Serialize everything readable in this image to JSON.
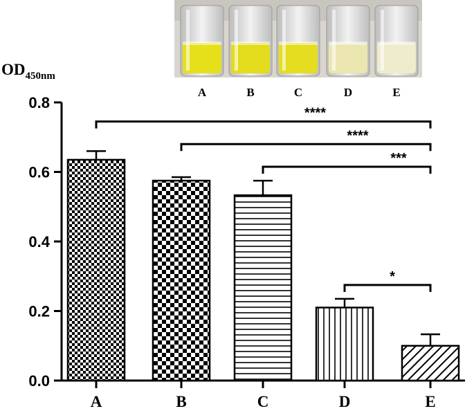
{
  "chart_data": {
    "type": "bar",
    "ylabel": "OD",
    "ylabel_subscript": "450nm",
    "xlabel": "",
    "ylim": [
      0,
      0.8
    ],
    "yticks": [
      "0.0",
      "0.2",
      "0.4",
      "0.6",
      "0.8"
    ],
    "categories": [
      "A",
      "B",
      "C",
      "D",
      "E"
    ],
    "values": [
      0.635,
      0.575,
      0.533,
      0.21,
      0.1
    ],
    "errors": [
      0.025,
      0.01,
      0.042,
      0.025,
      0.033
    ],
    "patterns": [
      "fine-checker",
      "coarse-checker",
      "horizontal-lines",
      "vertical-lines",
      "diagonal-lines"
    ],
    "significance": [
      {
        "from": "A",
        "to": "E",
        "label": "****",
        "y": 0.745
      },
      {
        "from": "B",
        "to": "E",
        "label": "****",
        "y": 0.68
      },
      {
        "from": "C",
        "to": "E",
        "label": "***",
        "y": 0.615
      },
      {
        "from": "D",
        "to": "E",
        "label": "*",
        "y": 0.275
      }
    ],
    "inset_photo": {
      "labels": [
        "A",
        "B",
        "C",
        "D",
        "E"
      ],
      "liquid_colors": [
        "#e6e01a",
        "#e3dc1c",
        "#e4dd20",
        "#ebe6b0",
        "#efeccd"
      ]
    }
  }
}
